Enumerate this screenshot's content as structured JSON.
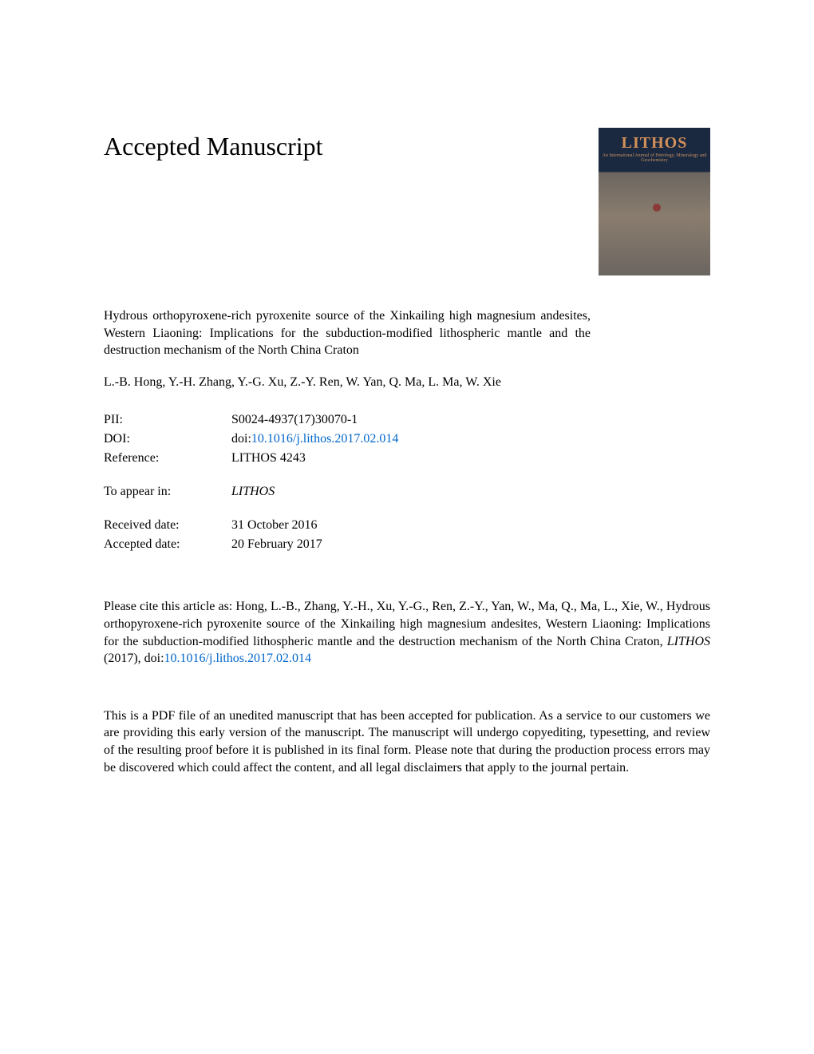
{
  "heading": "Accepted Manuscript",
  "journal_cover": {
    "title": "LITHOS",
    "subtitle": "An International Journal of Petrology, Mineralogy and Geochemistry"
  },
  "article": {
    "title": "Hydrous orthopyroxene-rich pyroxenite source of the Xinkailing high magnesium andesites, Western Liaoning: Implications for the subduction-modified lithospheric mantle and the destruction mechanism of the North China Craton",
    "authors": "L.-B. Hong, Y.-H. Zhang, Y.-G. Xu, Z.-Y. Ren, W. Yan, Q. Ma, L. Ma, W. Xie"
  },
  "meta": {
    "pii_label": "PII:",
    "pii_value": "S0024-4937(17)30070-1",
    "doi_label": "DOI:",
    "doi_prefix": "doi:",
    "doi_value": "10.1016/j.lithos.2017.02.014",
    "reference_label": "Reference:",
    "reference_value": "LITHOS 4243",
    "appear_label": "To appear in:",
    "appear_value": "LITHOS",
    "received_label": "Received date:",
    "received_value": "31 October 2016",
    "accepted_label": "Accepted date:",
    "accepted_value": "20 February 2017"
  },
  "citation": {
    "prefix": "Please cite this article as: Hong, L.-B., Zhang, Y.-H., Xu, Y.-G., Ren, Z.-Y., Yan, W., Ma, Q., Ma, L., Xie, W., Hydrous orthopyroxene-rich pyroxenite source of the Xinkailing high magnesium andesites, Western Liaoning: Implications for the subduction-modified lithospheric mantle and the destruction mechanism of the North China Craton, ",
    "journal": "LITHOS",
    "year": " (2017),  doi:",
    "doi": "10.1016/j.lithos.2017.02.014"
  },
  "disclaimer": "This is a PDF file of an unedited manuscript that has been accepted for publication. As a service to our customers we are providing this early version of the manuscript. The manuscript will undergo copyediting, typesetting, and review of the resulting proof before it is published in its final form. Please note that during the production process errors may be discovered which could affect the content, and all legal disclaimers that apply to the journal pertain.",
  "colors": {
    "text": "#000000",
    "link": "#0066cc",
    "background": "#ffffff",
    "cover_dark": "#1a2840",
    "cover_orange": "#d4915a"
  },
  "typography": {
    "heading_fontsize": 32,
    "body_fontsize": 16,
    "font_family": "Times New Roman"
  }
}
